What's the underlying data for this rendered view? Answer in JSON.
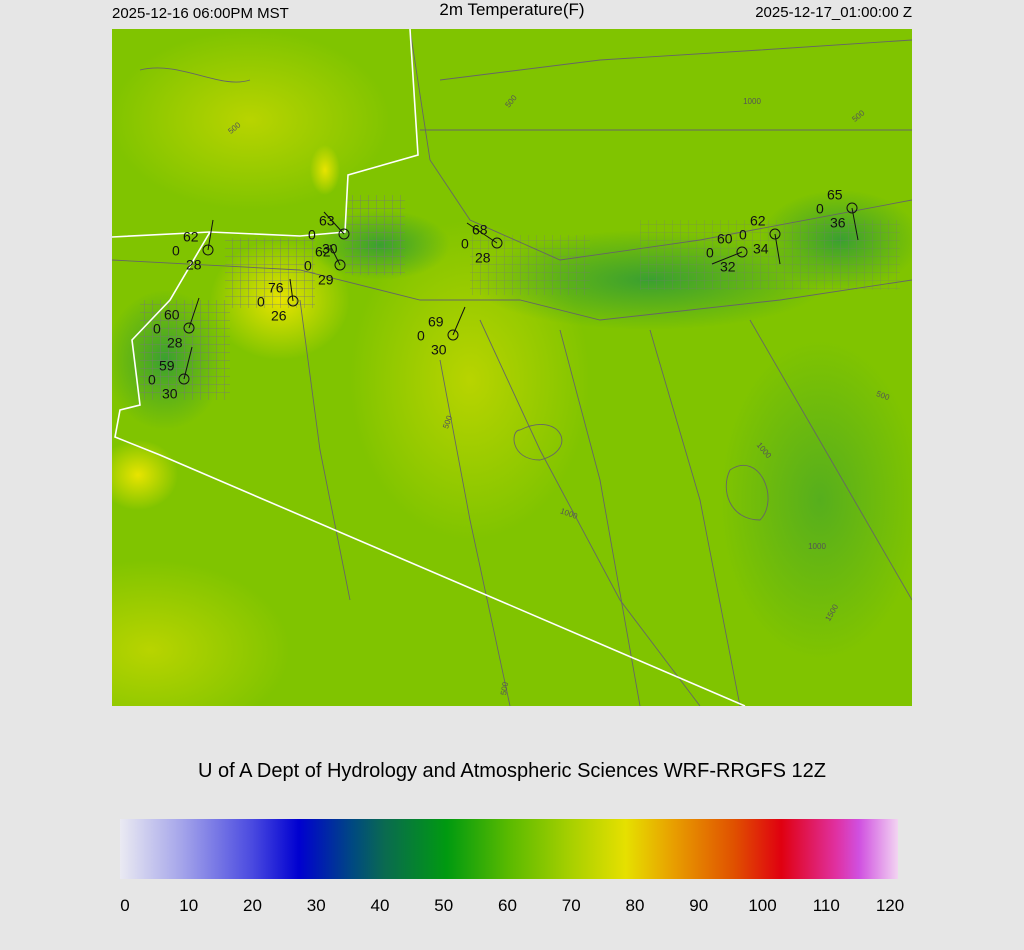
{
  "header": {
    "left": "2025-12-16 06:00PM MST",
    "title": "2m Temperature(F)",
    "right": "2025-12-17_01:00:00 Z"
  },
  "stations": [
    {
      "temperature": 62,
      "left": 0,
      "bottom": 28
    },
    {
      "temperature": 63,
      "left": 0,
      "bottom": 30
    },
    {
      "temperature": 62,
      "left": 0,
      "bottom": 29
    },
    {
      "temperature": 76,
      "left": 0,
      "bottom": 26
    },
    {
      "temperature": 60,
      "left": 0,
      "bottom": 28
    },
    {
      "temperature": 59,
      "left": 0,
      "bottom": 30
    },
    {
      "temperature": 68,
      "left": 0,
      "bottom": 28
    },
    {
      "temperature": 69,
      "left": 0,
      "bottom": 30
    },
    {
      "temperature": 60,
      "left": 0,
      "bottom": 32
    },
    {
      "temperature": 62,
      "left": 0,
      "bottom": 34
    },
    {
      "temperature": 65,
      "left": 0,
      "bottom": 36
    }
  ],
  "contour_labels": [
    500,
    500,
    500,
    500,
    1000,
    1000,
    1000,
    1000,
    1500,
    500,
    500
  ],
  "footer": "U of A Dept of Hydrology and Atmospheric Sciences WRF-RRGFS 12Z",
  "colorbar": {
    "ticks": [
      0,
      10,
      20,
      30,
      40,
      50,
      60,
      70,
      80,
      90,
      100,
      110,
      120
    ]
  }
}
